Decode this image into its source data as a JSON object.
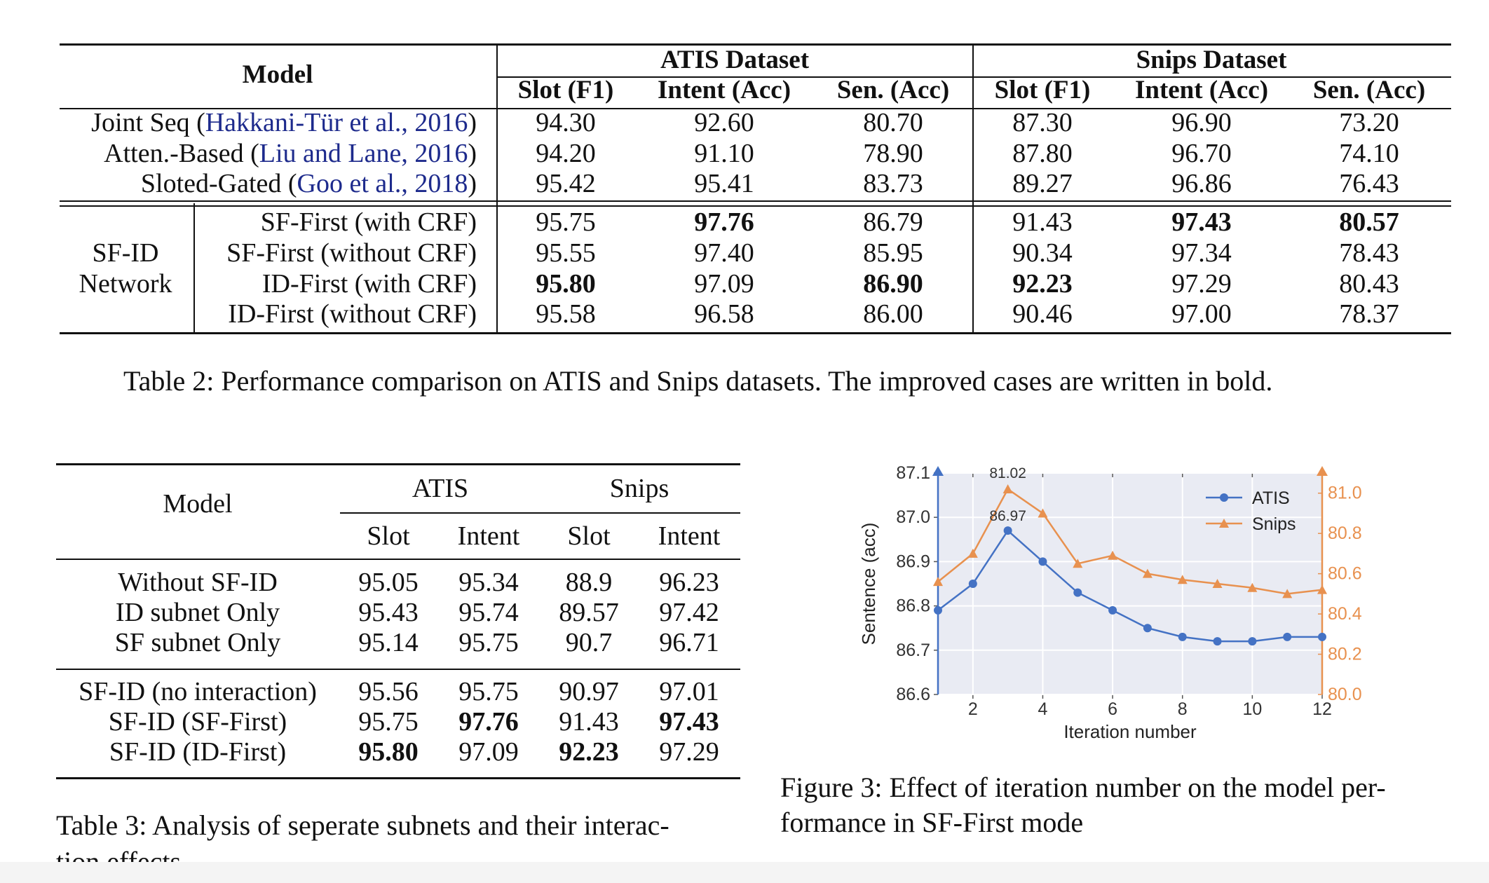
{
  "table2": {
    "header_model": "Model",
    "group1": "ATIS Dataset",
    "group2": "Snips Dataset",
    "subheaders": [
      "Slot (F1)",
      "Intent (Acc)",
      "Sen. (Acc)",
      "Slot (F1)",
      "Intent (Acc)",
      "Sen. (Acc)"
    ],
    "baseline_rows": [
      {
        "name": "Joint Seq (",
        "cite": "Hakkani-Tür et al., 2016",
        "close": ")",
        "values": [
          "94.30",
          "92.60",
          "80.70",
          "87.30",
          "96.90",
          "73.20"
        ]
      },
      {
        "name": "Atten.-Based (",
        "cite": "Liu and Lane, 2016",
        "close": ")",
        "values": [
          "94.20",
          "91.10",
          "78.90",
          "87.80",
          "96.70",
          "74.10"
        ]
      },
      {
        "name": "Sloted-Gated (",
        "cite": "Goo et al., 2018",
        "close": ")",
        "values": [
          "95.42",
          "95.41",
          "83.73",
          "89.27",
          "96.86",
          "76.43"
        ]
      }
    ],
    "group_label_line1": "SF-ID",
    "group_label_line2": "Network",
    "sfid_rows": [
      {
        "name": "SF-First (with CRF)",
        "values": [
          "95.75",
          "97.76",
          "86.79",
          "91.43",
          "97.43",
          "80.57"
        ]
      },
      {
        "name": "SF-First (without CRF)",
        "values": [
          "95.55",
          "97.40",
          "85.95",
          "90.34",
          "97.34",
          "78.43"
        ]
      },
      {
        "name": "ID-First (with CRF)",
        "values": [
          "95.80",
          "97.09",
          "86.90",
          "92.23",
          "97.29",
          "80.43"
        ]
      },
      {
        "name": "ID-First (without CRF)",
        "values": [
          "95.58",
          "96.58",
          "86.00",
          "90.46",
          "97.00",
          "78.37"
        ]
      }
    ],
    "caption": "Table 2: Performance comparison on ATIS and Snips datasets. The improved cases are written in bold."
  },
  "table3": {
    "header_model": "Model",
    "group1": "ATIS",
    "group2": "Snips",
    "subheaders": [
      "Slot",
      "Intent",
      "Slot",
      "Intent"
    ],
    "rows_a": [
      {
        "name": "Without SF-ID",
        "values": [
          "95.05",
          "95.34",
          "88.9",
          "96.23"
        ]
      },
      {
        "name": "ID subnet Only",
        "values": [
          "95.43",
          "95.74",
          "89.57",
          "97.42"
        ]
      },
      {
        "name": "SF subnet Only",
        "values": [
          "95.14",
          "95.75",
          "90.7",
          "96.71"
        ]
      }
    ],
    "rows_b": [
      {
        "name": "SF-ID (no interaction)",
        "values": [
          "95.56",
          "95.75",
          "90.97",
          "97.01"
        ]
      },
      {
        "name": "SF-ID (SF-First)",
        "values": [
          "95.75",
          "97.76",
          "91.43",
          "97.43"
        ]
      },
      {
        "name": "SF-ID (ID-First)",
        "values": [
          "95.80",
          "97.09",
          "92.23",
          "97.29"
        ]
      }
    ],
    "caption_line1": "Table 3: Analysis of seperate subnets and their interac-",
    "caption_line2": "tion effects"
  },
  "figure3": {
    "caption_line1": "Figure 3: Effect of iteration number on the model per-",
    "caption_line2": "formance in SF-First mode"
  },
  "chart_data": {
    "type": "line",
    "title": "",
    "xlabel": "Iteration number",
    "ylabel": "Sentence (acc)",
    "x": [
      1,
      2,
      3,
      4,
      5,
      6,
      7,
      8,
      9,
      10,
      11,
      12
    ],
    "xlim": [
      1,
      12
    ],
    "xticks": [
      "2",
      "4",
      "6",
      "8",
      "10",
      "12"
    ],
    "ylim_left": [
      86.6,
      87.1
    ],
    "yticks_left": [
      "86.6",
      "86.7",
      "86.8",
      "86.9",
      "87.0",
      "87.1"
    ],
    "ylim_right": [
      80.0,
      81.1
    ],
    "yticks_right": [
      "80.0",
      "80.2",
      "80.4",
      "80.6",
      "80.8",
      "81.0"
    ],
    "grid": true,
    "legend_position": "top-right",
    "series": [
      {
        "name": "ATIS",
        "axis": "left",
        "color": "#4472c4",
        "marker": "circle",
        "values": [
          86.79,
          86.85,
          86.97,
          86.9,
          86.83,
          86.79,
          86.75,
          86.73,
          86.72,
          86.72,
          86.73,
          86.73
        ]
      },
      {
        "name": "Snips",
        "axis": "right",
        "color": "#e8914f",
        "marker": "triangle",
        "values": [
          80.56,
          80.7,
          81.02,
          80.9,
          80.65,
          80.69,
          80.6,
          80.57,
          80.55,
          80.53,
          80.5,
          80.52
        ]
      }
    ],
    "annotations": [
      "81.02",
      "86.97"
    ],
    "background_color": "#e9ebf3"
  }
}
